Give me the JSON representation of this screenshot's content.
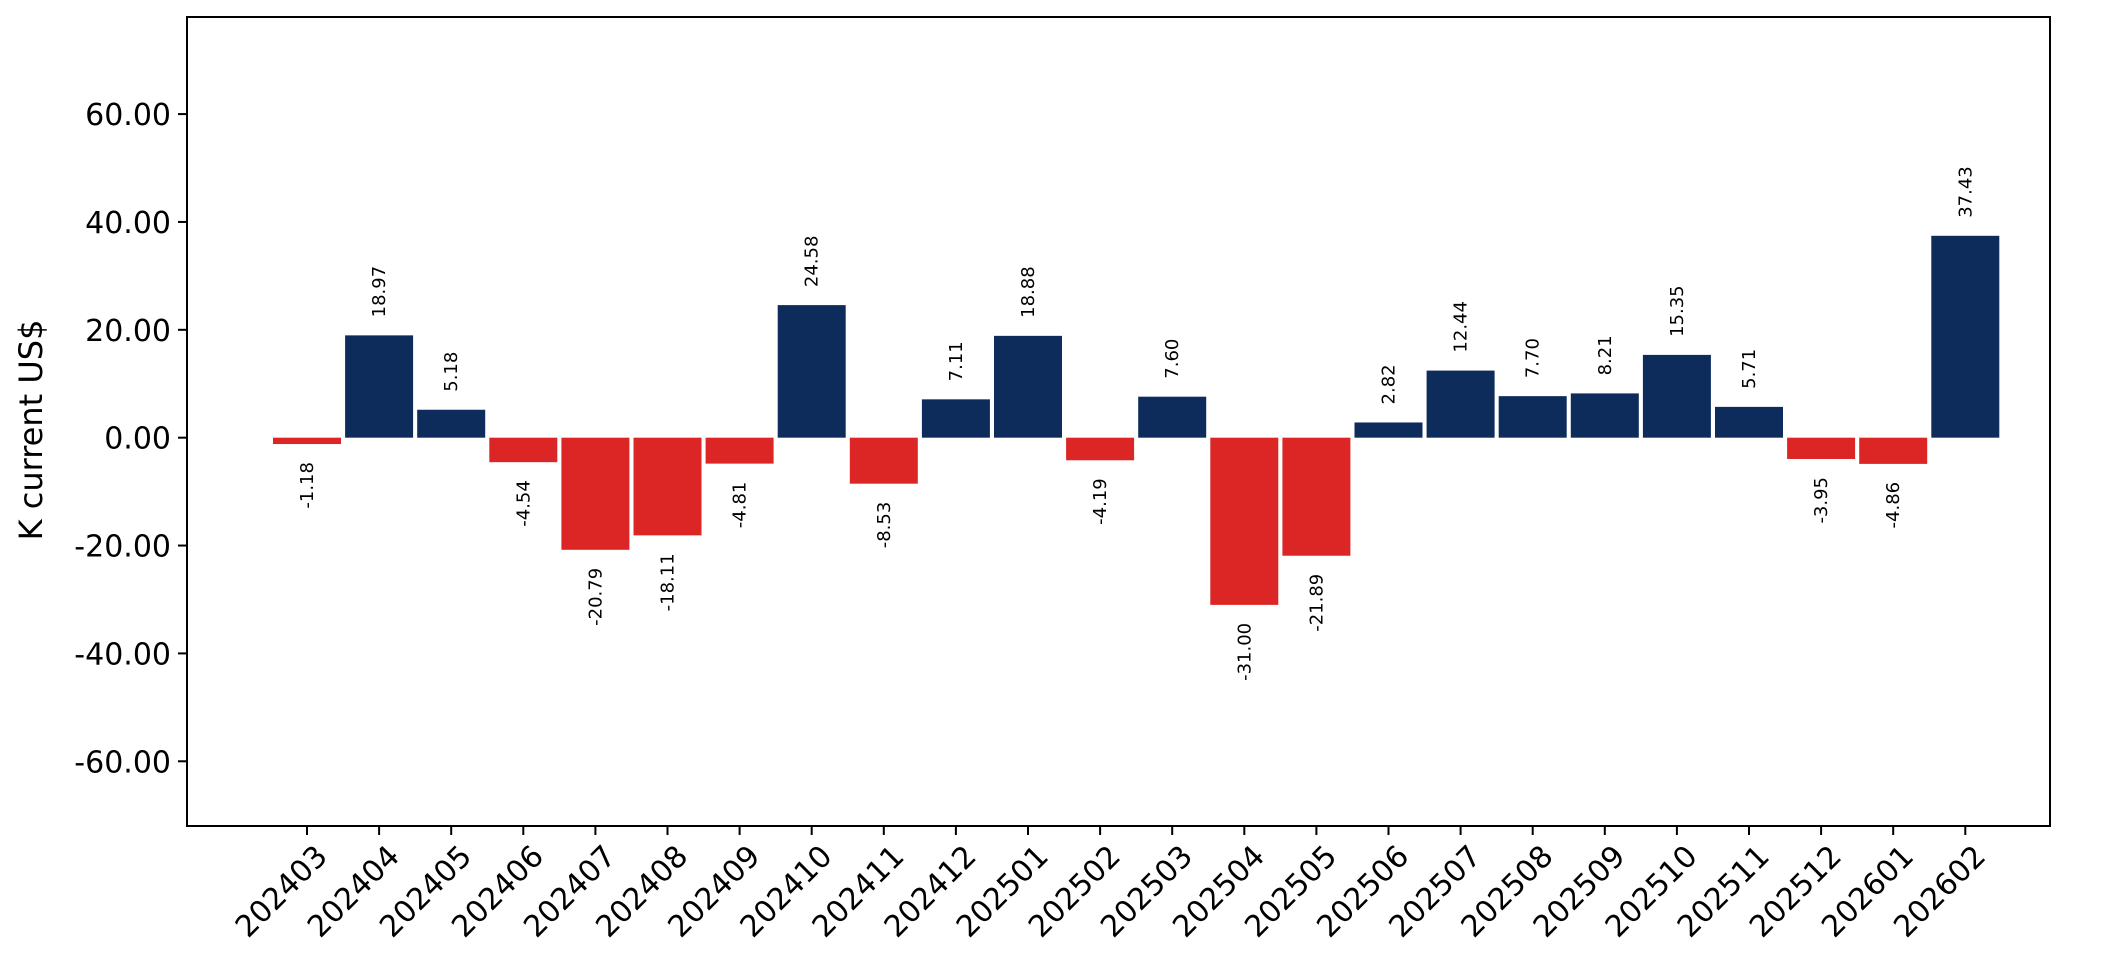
{
  "chart_data": {
    "type": "bar",
    "title": "",
    "xlabel": "",
    "ylabel": "K current US$",
    "ylim": [
      -72,
      78
    ],
    "yticks": [
      -60,
      -40,
      -20,
      0,
      20,
      40,
      60
    ],
    "ytick_labels": [
      "-60.00",
      "-40.00",
      "-20.00",
      "0.00",
      "20.00",
      "40.00",
      "60.00"
    ],
    "grid": false,
    "legend": "none",
    "colors": {
      "positive": "#0d2b5b",
      "negative": "#dc2626"
    },
    "categories": [
      "202403",
      "202404",
      "202405",
      "202406",
      "202407",
      "202408",
      "202409",
      "202410",
      "202411",
      "202412",
      "202501",
      "202502",
      "202503",
      "202504",
      "202505",
      "202506",
      "202507",
      "202508",
      "202509",
      "202510",
      "202511",
      "202512",
      "202601",
      "202602"
    ],
    "values": [
      -1.18,
      18.97,
      5.18,
      -4.54,
      -20.79,
      -18.11,
      -4.81,
      24.58,
      -8.53,
      7.11,
      18.88,
      -4.19,
      7.6,
      -31.0,
      -21.89,
      2.82,
      12.44,
      7.7,
      8.21,
      15.35,
      5.71,
      -3.95,
      -4.86,
      37.43
    ],
    "value_labels": [
      "-1.18",
      "18.97",
      "5.18",
      "-4.54",
      "-20.79",
      "-18.11",
      "-4.81",
      "24.58",
      "-8.53",
      "7.11",
      "18.88",
      "-4.19",
      "7.60",
      "-31.00",
      "-21.89",
      "2.82",
      "12.44",
      "7.70",
      "8.21",
      "15.35",
      "5.71",
      "-3.95",
      "-4.86",
      "37.43"
    ]
  }
}
